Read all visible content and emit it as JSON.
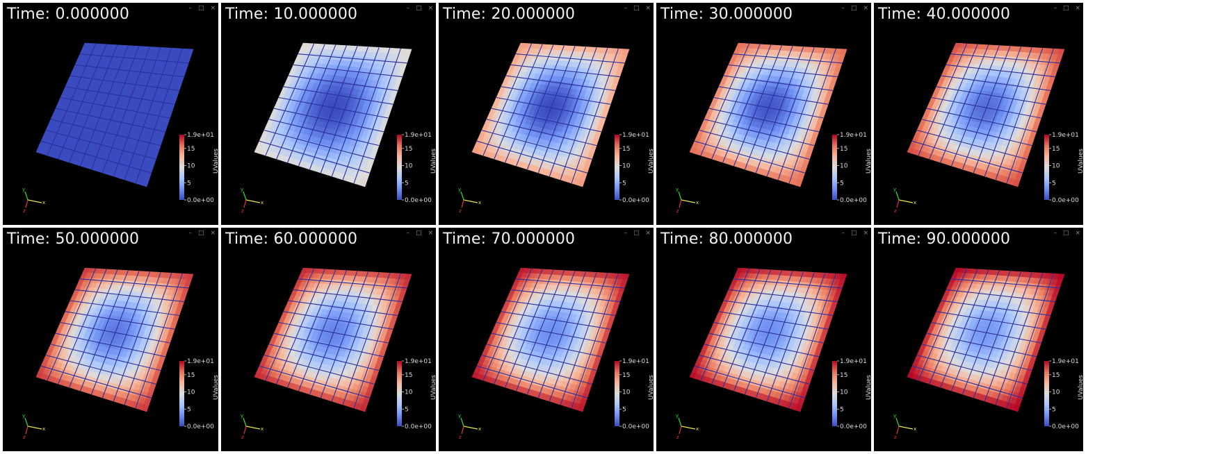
{
  "window_controls": {
    "minimize": "–",
    "maximize": "□",
    "close": "×"
  },
  "colorbar": {
    "title": "UValues",
    "max_label": "1.9e+01",
    "min_label": "0.0e+00",
    "ticks": [
      "15",
      "10",
      "5"
    ],
    "colormap": [
      "#3b4cc0",
      "#6f92f3",
      "#aac7fd",
      "#dddddd",
      "#f7b89c",
      "#e7745b",
      "#b40426"
    ]
  },
  "views": [
    {
      "time_label": "Time: 0.000000",
      "time": 0,
      "boundary_value": 0,
      "center_value": 0
    },
    {
      "time_label": "Time: 10.000000",
      "time": 10,
      "boundary_value": 10,
      "center_value": 0
    },
    {
      "time_label": "Time: 20.000000",
      "time": 20,
      "boundary_value": 14,
      "center_value": 0
    },
    {
      "time_label": "Time: 30.000000",
      "time": 30,
      "boundary_value": 16,
      "center_value": 0.5
    },
    {
      "time_label": "Time: 40.000000",
      "time": 40,
      "boundary_value": 17,
      "center_value": 1.5
    },
    {
      "time_label": "Time: 50.000000",
      "time": 50,
      "boundary_value": 17.5,
      "center_value": 2
    },
    {
      "time_label": "Time: 60.000000",
      "time": 60,
      "boundary_value": 18,
      "center_value": 2.5
    },
    {
      "time_label": "Time: 70.000000",
      "time": 70,
      "boundary_value": 18.5,
      "center_value": 3
    },
    {
      "time_label": "Time: 80.000000",
      "time": 80,
      "boundary_value": 18.8,
      "center_value": 3
    },
    {
      "time_label": "Time: 90.000000",
      "time": 90,
      "boundary_value": 19,
      "center_value": 3.5
    }
  ]
}
